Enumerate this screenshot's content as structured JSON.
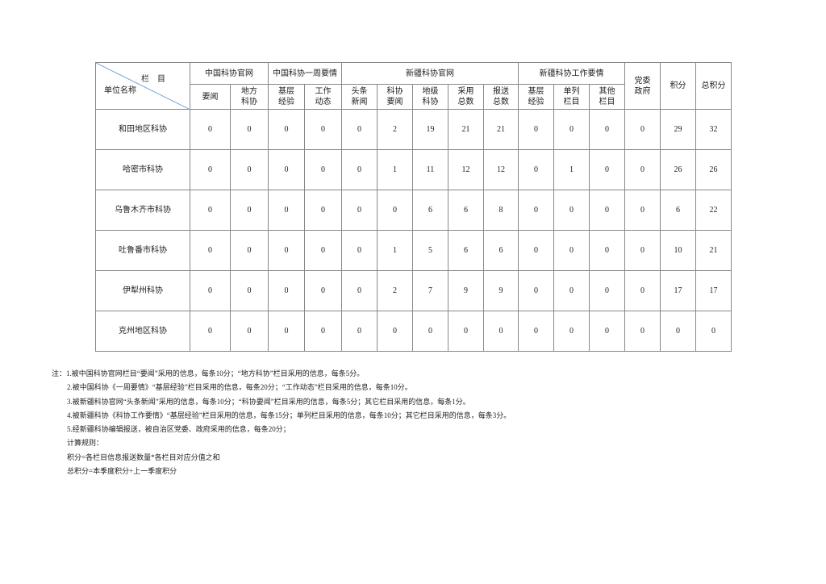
{
  "table": {
    "corner": {
      "top": "栏　目",
      "bottom": "单位名称"
    },
    "groups": [
      "中国科协官网",
      "中国科协一周要情",
      "新疆科协官网",
      "新疆科协工作要情",
      "党委政府",
      "积分",
      "总积分"
    ],
    "columns": [
      "要闻",
      "地方科协",
      "基层经验",
      "工作动态",
      "头条新闻",
      "科协要闻",
      "地级科协",
      "采用总数",
      "报送总数",
      "基层经验",
      "单列栏目",
      "其他栏目"
    ],
    "rows": [
      [
        "和田地区科协",
        0,
        0,
        0,
        0,
        0,
        2,
        19,
        21,
        21,
        0,
        0,
        0,
        0,
        29,
        32
      ],
      [
        "哈密市科协",
        0,
        0,
        0,
        0,
        0,
        1,
        11,
        12,
        12,
        0,
        1,
        0,
        0,
        26,
        26
      ],
      [
        "乌鲁木齐市科协",
        0,
        0,
        0,
        0,
        0,
        0,
        6,
        6,
        8,
        0,
        0,
        0,
        0,
        6,
        22
      ],
      [
        "吐鲁番市科协",
        0,
        0,
        0,
        0,
        0,
        1,
        5,
        6,
        6,
        0,
        0,
        0,
        0,
        10,
        21
      ],
      [
        "伊犁州科协",
        0,
        0,
        0,
        0,
        0,
        2,
        7,
        9,
        9,
        0,
        0,
        0,
        0,
        17,
        17
      ],
      [
        "克州地区科协",
        0,
        0,
        0,
        0,
        0,
        0,
        0,
        0,
        0,
        0,
        0,
        0,
        0,
        0,
        0
      ]
    ]
  },
  "notes": {
    "label": "注：",
    "lines": [
      "1.被中国科协官网栏目“要闻”采用的信息，每条10分；“地方科协”栏目采用的信息，每条5分。",
      "2.被中国科协《一周要情》“基层经验”栏目采用的信息，每条20分；“工作动态”栏目采用的信息，每条10分。",
      "3.被新疆科协官网“头条新闻”采用的信息，每条10分；“科协要闻”栏目采用的信息，每条5分；其它栏目采用的信息，每条1分。",
      "4.被新疆科协《科协工作要情》“基层经验”栏目采用的信息，每条15分；单列栏目采用的信息，每条10分；其它栏目采用的信息，每条3分。",
      "5.经新疆科协编辑报送，被自治区党委、政府采用的信息，每条20分；",
      "计算规则：",
      "积分=各栏目信息报送数量*各栏目对应分值之和",
      "总积分=本季度积分+上一季度积分"
    ]
  }
}
